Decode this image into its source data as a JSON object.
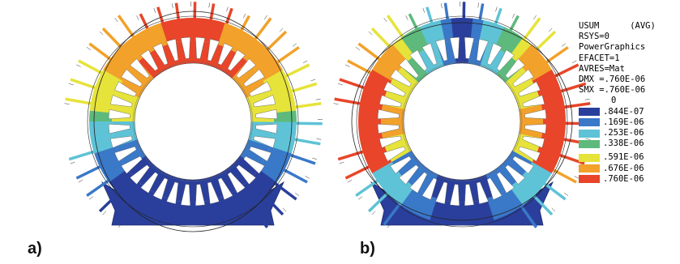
{
  "panels": [
    {
      "label": "a)",
      "mode": "vertical-ellipse"
    },
    {
      "label": "b)",
      "mode": "horizontal-ellipse"
    }
  ],
  "legend": {
    "lines": [
      "USUM      (AVG)",
      "RSYS=0",
      "PowerGraphics",
      "EFACET=1",
      "AVRES=Mat",
      "DMX =.760E-06",
      "SMX =.760E-06"
    ],
    "zero_label": "0",
    "entries": [
      {
        "label": ".844E-07",
        "color": "#2a3f9c"
      },
      {
        "label": ".169E-06",
        "color": "#3a78c8"
      },
      {
        "label": ".253E-06",
        "color": "#5ec3d6"
      },
      {
        "label": ".338E-06",
        "color": "#5dba7c"
      },
      {
        "label": ".591E-06",
        "color": "#e6e33a"
      },
      {
        "label": ".676E-06",
        "color": "#f2a12a"
      },
      {
        "label": ".760E-06",
        "color": "#e8452a"
      }
    ]
  }
}
